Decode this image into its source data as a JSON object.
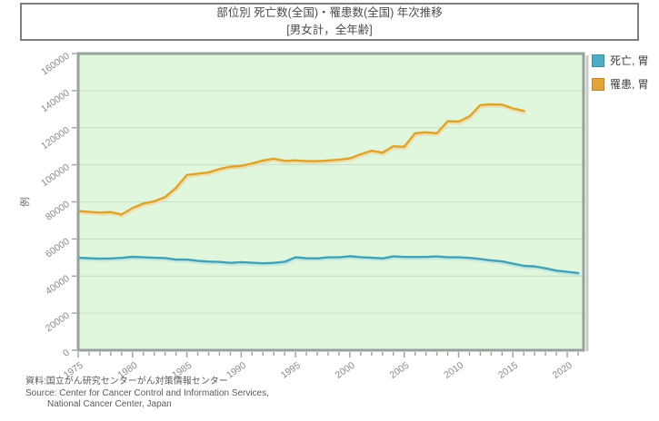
{
  "title": {
    "line1": "部位別 死亡数(全国)・罹患数(全国) 年次推移",
    "line2": "[男女計，全年齢]"
  },
  "legend": [
    {
      "label": "死亡, 胃",
      "color": "#4fadc4",
      "border": "#3c8ca3"
    },
    {
      "label": "罹患, 胃",
      "color": "#e2a33b",
      "border": "#bd862c"
    }
  ],
  "footer": {
    "line1": "資料:国立がん研究センターがん対策情報センター",
    "line2": "Source: Center for Cancer Control and Information Services,",
    "line3": "National Cancer Center, Japan"
  },
  "chart_data": {
    "type": "line",
    "title": "部位別 死亡数(全国)・罹患数(全国) 年次推移 [男女計，全年齢]",
    "xlabel": "",
    "ylabel": "例",
    "xlim": [
      1975,
      2021.5
    ],
    "ylim": [
      0,
      160000
    ],
    "x_ticks_major": [
      1975,
      1980,
      1985,
      1990,
      1995,
      2000,
      2005,
      2010,
      2015,
      2020
    ],
    "x_minor_tick_step": 1,
    "y_ticks": [
      0,
      20000,
      40000,
      60000,
      80000,
      100000,
      120000,
      140000,
      160000
    ],
    "grid": true,
    "legend_position": "right-top",
    "plot_bg": "#e0f7dd",
    "grid_color": "#c5ddc2",
    "axis_color": "#98a29b",
    "tick_label_color": "#8a8a8a",
    "series": [
      {
        "name": "死亡, 胃",
        "color": "#43a1b5",
        "halo": "#c0e7e2",
        "start_year": 1975,
        "end_year": 2021,
        "values": [
          49900,
          49600,
          49400,
          49500,
          49800,
          50400,
          50100,
          49900,
          49700,
          48900,
          48900,
          48200,
          47800,
          47600,
          47100,
          47500,
          47200,
          46900,
          47100,
          47700,
          50100,
          49600,
          49500,
          50100,
          50100,
          50700,
          50200,
          49900,
          49500,
          50600,
          50300,
          50300,
          50300,
          50600,
          50100,
          50100,
          49800,
          49200,
          48400,
          47900,
          46700,
          45500,
          45200,
          44200,
          42900,
          42300,
          41600
        ]
      },
      {
        "name": "罹患, 胃",
        "color": "#dca42f",
        "halo": "#efdca6",
        "start_year": 1975,
        "end_year": 2016,
        "values": [
          75100,
          74600,
          74200,
          74500,
          73200,
          76700,
          79100,
          80300,
          82600,
          87600,
          94500,
          95200,
          95900,
          97700,
          99000,
          99400,
          100700,
          102300,
          103300,
          102100,
          102400,
          102000,
          102000,
          102300,
          102800,
          103500,
          105700,
          107600,
          106500,
          110000,
          109700,
          117000,
          117500,
          117000,
          123500,
          123300,
          126100,
          132200,
          132600,
          132400,
          130400,
          129100
        ]
      }
    ]
  }
}
